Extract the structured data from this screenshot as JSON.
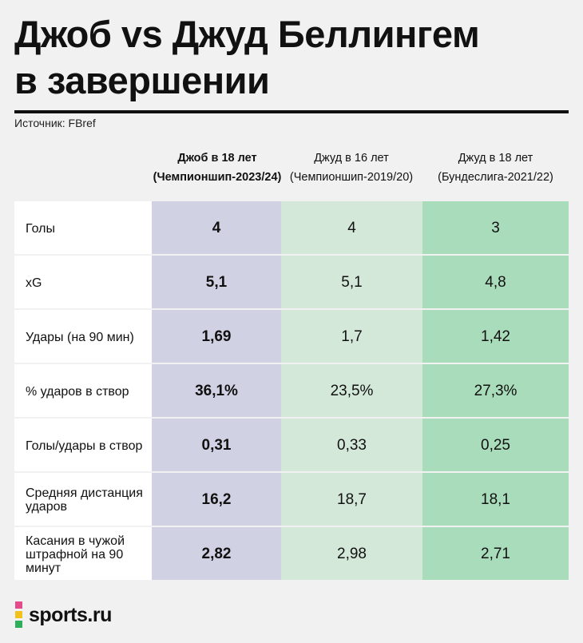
{
  "title_line1": "Джоб vs Джуд Беллингем",
  "title_line2": "в завершении",
  "source": "Источник: FBref",
  "columns": [
    {
      "line1": "Джоб в 18 лет",
      "line2": "(Чемпионшип-2023/24)"
    },
    {
      "line1": "Джуд в 16 лет",
      "line2": "(Чемпионшип-2019/20)"
    },
    {
      "line1": "Джуд в 18 лет",
      "line2": "(Бундеслига-2021/22)"
    }
  ],
  "rows": [
    {
      "label": "Голы",
      "values": [
        "4",
        "4",
        "3"
      ]
    },
    {
      "label": "xG",
      "values": [
        "5,1",
        "5,1",
        "4,8"
      ]
    },
    {
      "label": "Удары (на 90 мин)",
      "values": [
        "1,69",
        "1,7",
        "1,42"
      ]
    },
    {
      "label": "% ударов в створ",
      "values": [
        "36,1%",
        "23,5%",
        "27,3%"
      ]
    },
    {
      "label": "Голы/удары в створ",
      "values": [
        "0,31",
        "0,33",
        "0,25"
      ]
    },
    {
      "label": "Средняя дистанция ударов",
      "values": [
        "16,2",
        "18,7",
        "18,1"
      ]
    },
    {
      "label": "Касания в чужой штрафной на 90 минут",
      "values": [
        "2,82",
        "2,98",
        "2,71"
      ]
    }
  ],
  "brand": "sports.ru",
  "colors": {
    "job_column": "#d0d1e3",
    "jude16_column": "#d4e8da",
    "jude18_column": "#a9dcbb"
  }
}
